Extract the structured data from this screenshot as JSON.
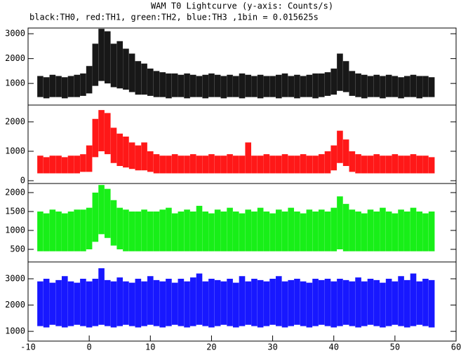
{
  "title": "WAM T0 Lightcurve (y-axis: Counts/s)",
  "subtitle": "black:TH0, red:TH1, green:TH2, blue:TH3 ,1bin = 0.015625s",
  "chart_data": [
    {
      "type": "range",
      "color": "#000000",
      "x": [
        -8,
        -7,
        -6,
        -5,
        -4,
        -3,
        -2,
        -1,
        0,
        1,
        2,
        3,
        4,
        5,
        6,
        7,
        8,
        9,
        10,
        11,
        12,
        13,
        14,
        15,
        16,
        17,
        18,
        19,
        20,
        21,
        22,
        23,
        24,
        25,
        26,
        27,
        28,
        29,
        30,
        31,
        32,
        33,
        34,
        35,
        36,
        37,
        38,
        39,
        40,
        41,
        42,
        43,
        44,
        45,
        46,
        47,
        48,
        49,
        50,
        51,
        52,
        53,
        54,
        55,
        56
      ],
      "high": [
        1300,
        1250,
        1350,
        1300,
        1250,
        1300,
        1350,
        1400,
        1700,
        2600,
        3200,
        3100,
        2600,
        2700,
        2400,
        2200,
        1900,
        1800,
        1600,
        1500,
        1450,
        1400,
        1400,
        1350,
        1400,
        1350,
        1300,
        1350,
        1400,
        1350,
        1300,
        1350,
        1300,
        1400,
        1350,
        1300,
        1350,
        1300,
        1300,
        1350,
        1400,
        1300,
        1350,
        1300,
        1350,
        1400,
        1400,
        1450,
        1600,
        2200,
        1900,
        1500,
        1400,
        1350,
        1300,
        1350,
        1300,
        1350,
        1300,
        1250,
        1300,
        1350,
        1300,
        1300,
        1250
      ],
      "low": [
        450,
        400,
        450,
        450,
        400,
        450,
        450,
        500,
        600,
        900,
        1100,
        1000,
        850,
        800,
        750,
        650,
        550,
        550,
        500,
        450,
        450,
        400,
        450,
        450,
        400,
        450,
        450,
        400,
        450,
        450,
        400,
        450,
        450,
        400,
        450,
        450,
        400,
        450,
        450,
        400,
        450,
        450,
        400,
        450,
        450,
        400,
        450,
        500,
        550,
        700,
        650,
        500,
        450,
        400,
        450,
        450,
        400,
        450,
        450,
        400,
        450,
        450,
        400,
        450,
        450
      ],
      "xlim": [
        -10,
        60
      ],
      "ylim": [
        130,
        3230
      ],
      "yticks": [
        1000,
        2000,
        3000
      ]
    },
    {
      "type": "range",
      "color": "#ff0000",
      "x": [
        -8,
        -7,
        -6,
        -5,
        -4,
        -3,
        -2,
        -1,
        0,
        1,
        2,
        3,
        4,
        5,
        6,
        7,
        8,
        9,
        10,
        11,
        12,
        13,
        14,
        15,
        16,
        17,
        18,
        19,
        20,
        21,
        22,
        23,
        24,
        25,
        26,
        27,
        28,
        29,
        30,
        31,
        32,
        33,
        34,
        35,
        36,
        37,
        38,
        39,
        40,
        41,
        42,
        43,
        44,
        45,
        46,
        47,
        48,
        49,
        50,
        51,
        52,
        53,
        54,
        55,
        56
      ],
      "high": [
        850,
        800,
        850,
        850,
        800,
        850,
        850,
        900,
        1200,
        2100,
        2400,
        2300,
        1800,
        1600,
        1500,
        1300,
        1200,
        1300,
        1000,
        900,
        850,
        850,
        900,
        850,
        850,
        900,
        850,
        850,
        900,
        850,
        850,
        900,
        850,
        850,
        1300,
        850,
        850,
        900,
        850,
        850,
        900,
        850,
        850,
        900,
        850,
        850,
        900,
        1000,
        1200,
        1700,
        1400,
        1000,
        900,
        850,
        850,
        900,
        850,
        850,
        900,
        850,
        850,
        900,
        850,
        850,
        800
      ],
      "low": [
        250,
        250,
        250,
        250,
        250,
        250,
        250,
        300,
        300,
        800,
        1000,
        900,
        600,
        500,
        450,
        400,
        350,
        350,
        300,
        250,
        250,
        250,
        250,
        250,
        250,
        250,
        250,
        250,
        250,
        250,
        250,
        250,
        250,
        250,
        250,
        250,
        250,
        250,
        250,
        250,
        250,
        250,
        250,
        250,
        250,
        250,
        250,
        250,
        350,
        600,
        500,
        300,
        250,
        250,
        250,
        250,
        250,
        250,
        250,
        250,
        250,
        250,
        250,
        250,
        250
      ],
      "xlim": [
        -10,
        60
      ],
      "ylim": [
        -95,
        2570
      ],
      "yticks": [
        0,
        1000,
        2000
      ]
    },
    {
      "type": "range",
      "color": "#00ee00",
      "x": [
        -8,
        -7,
        -6,
        -5,
        -4,
        -3,
        -2,
        -1,
        0,
        1,
        2,
        3,
        4,
        5,
        6,
        7,
        8,
        9,
        10,
        11,
        12,
        13,
        14,
        15,
        16,
        17,
        18,
        19,
        20,
        21,
        22,
        23,
        24,
        25,
        26,
        27,
        28,
        29,
        30,
        31,
        32,
        33,
        34,
        35,
        36,
        37,
        38,
        39,
        40,
        41,
        42,
        43,
        44,
        45,
        46,
        47,
        48,
        49,
        50,
        51,
        52,
        53,
        54,
        55,
        56
      ],
      "high": [
        1500,
        1450,
        1550,
        1500,
        1450,
        1500,
        1550,
        1550,
        1600,
        2000,
        2200,
        2100,
        1800,
        1600,
        1550,
        1500,
        1500,
        1550,
        1500,
        1500,
        1550,
        1600,
        1450,
        1500,
        1550,
        1500,
        1650,
        1500,
        1450,
        1550,
        1500,
        1600,
        1500,
        1450,
        1550,
        1500,
        1600,
        1500,
        1450,
        1550,
        1500,
        1600,
        1500,
        1450,
        1550,
        1500,
        1550,
        1500,
        1600,
        1900,
        1700,
        1550,
        1500,
        1450,
        1550,
        1500,
        1600,
        1500,
        1450,
        1550,
        1500,
        1600,
        1500,
        1450,
        1500
      ],
      "low": [
        450,
        450,
        450,
        450,
        450,
        450,
        450,
        450,
        500,
        700,
        900,
        800,
        600,
        500,
        450,
        450,
        450,
        450,
        450,
        450,
        450,
        450,
        450,
        450,
        450,
        450,
        450,
        450,
        450,
        450,
        450,
        450,
        450,
        450,
        450,
        450,
        450,
        450,
        450,
        450,
        450,
        450,
        450,
        450,
        450,
        450,
        450,
        450,
        450,
        500,
        450,
        450,
        450,
        450,
        450,
        450,
        450,
        450,
        450,
        450,
        450,
        450,
        450,
        450,
        450
      ],
      "xlim": [
        -10,
        60
      ],
      "ylim": [
        167,
        2240
      ],
      "yticks": [
        500,
        1000,
        1500,
        2000
      ]
    },
    {
      "type": "range",
      "color": "#0000ff",
      "x": [
        -8,
        -7,
        -6,
        -5,
        -4,
        -3,
        -2,
        -1,
        0,
        1,
        2,
        3,
        4,
        5,
        6,
        7,
        8,
        9,
        10,
        11,
        12,
        13,
        14,
        15,
        16,
        17,
        18,
        19,
        20,
        21,
        22,
        23,
        24,
        25,
        26,
        27,
        28,
        29,
        30,
        31,
        32,
        33,
        34,
        35,
        36,
        37,
        38,
        39,
        40,
        41,
        42,
        43,
        44,
        45,
        46,
        47,
        48,
        49,
        50,
        51,
        52,
        53,
        54,
        55,
        56
      ],
      "high": [
        2900,
        3000,
        2850,
        2950,
        3100,
        2900,
        2850,
        3000,
        2900,
        3000,
        3400,
        2950,
        2900,
        3050,
        2900,
        2850,
        3000,
        2900,
        3100,
        2950,
        2900,
        3000,
        2850,
        3000,
        2900,
        3050,
        3200,
        2900,
        3000,
        2950,
        2900,
        3000,
        2850,
        3100,
        2900,
        3000,
        2950,
        2900,
        3000,
        3100,
        2900,
        2950,
        3000,
        2900,
        2850,
        3000,
        2950,
        3000,
        2900,
        3000,
        2950,
        2900,
        3050,
        2900,
        3000,
        2950,
        2850,
        3000,
        2900,
        3100,
        2950,
        3200,
        2900,
        3000,
        2950
      ],
      "low": [
        1200,
        1150,
        1250,
        1200,
        1150,
        1200,
        1250,
        1200,
        1150,
        1200,
        1250,
        1200,
        1150,
        1200,
        1250,
        1200,
        1150,
        1200,
        1250,
        1200,
        1150,
        1200,
        1250,
        1200,
        1150,
        1200,
        1250,
        1200,
        1150,
        1200,
        1250,
        1200,
        1150,
        1200,
        1250,
        1200,
        1150,
        1200,
        1250,
        1200,
        1150,
        1200,
        1250,
        1200,
        1150,
        1200,
        1250,
        1200,
        1150,
        1200,
        1250,
        1200,
        1150,
        1200,
        1250,
        1200,
        1150,
        1200,
        1250,
        1200,
        1150,
        1200,
        1250,
        1200,
        1150
      ],
      "xlim": [
        -10,
        60
      ],
      "ylim": [
        630,
        3640
      ],
      "yticks": [
        1000,
        2000,
        3000
      ],
      "xticks": [
        -10,
        0,
        10,
        20,
        30,
        40,
        50,
        60
      ]
    }
  ]
}
